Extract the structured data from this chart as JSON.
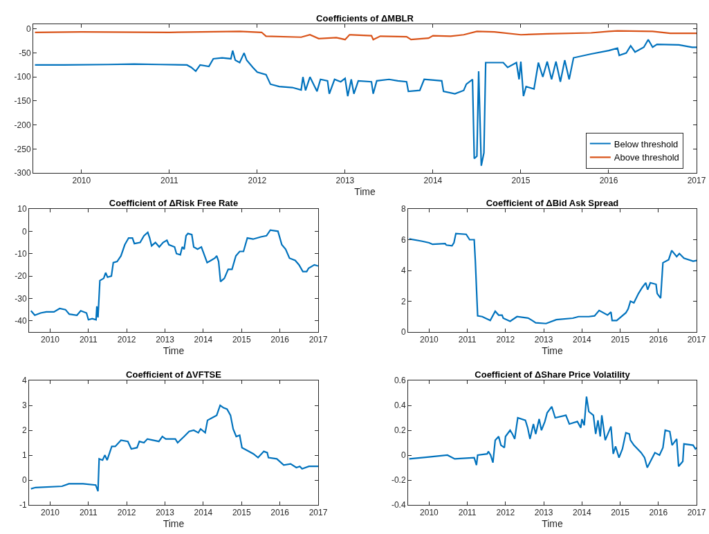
{
  "chart_data": [
    {
      "type": "line",
      "title": "Coefficients of ΔMBLR",
      "xlabel": "Time",
      "xlim": [
        2009.45,
        2017
      ],
      "xticks": [
        2010,
        2011,
        2012,
        2013,
        2014,
        2015,
        2016,
        2017
      ],
      "ylim": [
        -300,
        10
      ],
      "yticks": [
        -300,
        -250,
        -200,
        -150,
        -100,
        -50,
        0
      ],
      "legend": "bottom right",
      "series": [
        {
          "name": "Below threshold",
          "color": "#0072bd",
          "x": [
            2009.47,
            2009.8,
            2010.3,
            2010.6,
            2010.9,
            2011.2,
            2011.25,
            2011.3,
            2011.35,
            2011.45,
            2011.5,
            2011.6,
            2011.7,
            2011.72,
            2011.75,
            2011.8,
            2011.85,
            2011.88,
            2011.95,
            2012.0,
            2012.1,
            2012.15,
            2012.25,
            2012.4,
            2012.5,
            2012.52,
            2012.55,
            2012.6,
            2012.68,
            2012.72,
            2012.8,
            2012.82,
            2012.88,
            2012.95,
            2013.0,
            2013.03,
            2013.07,
            2013.1,
            2013.15,
            2013.3,
            2013.32,
            2013.36,
            2013.5,
            2013.6,
            2013.7,
            2013.72,
            2013.85,
            2013.9,
            2014.1,
            2014.12,
            2014.25,
            2014.35,
            2014.38,
            2014.45,
            2014.47,
            2014.5,
            2014.52,
            2014.55,
            2014.58,
            2014.6,
            2014.8,
            2014.85,
            2014.95,
            2014.98,
            2015.0,
            2015.03,
            2015.06,
            2015.15,
            2015.2,
            2015.25,
            2015.3,
            2015.35,
            2015.4,
            2015.45,
            2015.5,
            2015.55,
            2015.6,
            2015.8,
            2016.0,
            2016.1,
            2016.12,
            2016.2,
            2016.25,
            2016.3,
            2016.4,
            2016.45,
            2016.5,
            2016.55,
            2016.8,
            2016.95,
            2017.0
          ],
          "values": [
            -75,
            -75,
            -74,
            -73,
            -74,
            -75,
            -80,
            -88,
            -75,
            -78,
            -62,
            -60,
            -62,
            -45,
            -65,
            -70,
            -50,
            -65,
            -80,
            -90,
            -95,
            -115,
            -120,
            -122,
            -127,
            -100,
            -128,
            -100,
            -130,
            -105,
            -108,
            -135,
            -105,
            -110,
            -103,
            -140,
            -105,
            -135,
            -108,
            -110,
            -135,
            -108,
            -105,
            -108,
            -110,
            -130,
            -128,
            -105,
            -108,
            -130,
            -135,
            -128,
            -115,
            -105,
            -270,
            -265,
            -88,
            -285,
            -258,
            -70,
            -70,
            -80,
            -70,
            -105,
            -68,
            -140,
            -120,
            -125,
            -70,
            -100,
            -68,
            -105,
            -68,
            -110,
            -65,
            -105,
            -60,
            -52,
            -45,
            -40,
            -55,
            -50,
            -35,
            -48,
            -38,
            -22,
            -38,
            -32,
            -33,
            -38,
            -38
          ]
        },
        {
          "name": "Above threshold",
          "color": "#d95319",
          "x": [
            2009.47,
            2010,
            2011,
            2011.8,
            2012.05,
            2012.1,
            2012.5,
            2012.6,
            2012.7,
            2012.9,
            2013.0,
            2013.05,
            2013.3,
            2013.32,
            2013.4,
            2013.7,
            2013.75,
            2013.95,
            2014.0,
            2014.2,
            2014.35,
            2014.5,
            2014.7,
            2015.0,
            2015.3,
            2015.8,
            2016.0,
            2016.1,
            2016.5,
            2016.7,
            2017
          ],
          "values": [
            -7,
            -6,
            -7,
            -5,
            -7,
            -15,
            -17,
            -12,
            -20,
            -18,
            -22,
            -12,
            -14,
            -22,
            -15,
            -16,
            -22,
            -19,
            -14,
            -15,
            -12,
            -5,
            -6,
            -12,
            -10,
            -8,
            -5,
            -4,
            -5,
            -9,
            -9
          ]
        }
      ]
    },
    {
      "type": "line",
      "title": "Coefficient of ΔRisk Free Rate",
      "xlabel": "Time",
      "xlim": [
        2009.45,
        2017
      ],
      "xticks": [
        2010,
        2011,
        2012,
        2013,
        2014,
        2015,
        2016,
        2017
      ],
      "ylim": [
        -45,
        10
      ],
      "yticks": [
        -40,
        -30,
        -20,
        -10,
        0,
        10
      ],
      "series": [
        {
          "color": "#0072bd",
          "x": [
            2009.5,
            2009.6,
            2009.75,
            2009.9,
            2010.1,
            2010.25,
            2010.4,
            2010.5,
            2010.7,
            2010.8,
            2010.95,
            2011.0,
            2011.1,
            2011.2,
            2011.22,
            2011.25,
            2011.3,
            2011.4,
            2011.45,
            2011.5,
            2011.6,
            2011.65,
            2011.75,
            2011.85,
            2011.95,
            2012.05,
            2012.15,
            2012.2,
            2012.35,
            2012.45,
            2012.55,
            2012.6,
            2012.65,
            2012.75,
            2012.85,
            2012.95,
            2013.05,
            2013.1,
            2013.25,
            2013.3,
            2013.4,
            2013.45,
            2013.5,
            2013.55,
            2013.6,
            2013.7,
            2013.75,
            2013.85,
            2013.95,
            2014.1,
            2014.2,
            2014.3,
            2014.35,
            2014.4,
            2014.45,
            2014.55,
            2014.65,
            2014.75,
            2014.85,
            2014.95,
            2015.05,
            2015.15,
            2015.3,
            2015.5,
            2015.65,
            2015.75,
            2015.95,
            2016.05,
            2016.15,
            2016.25,
            2016.4,
            2016.5,
            2016.6,
            2016.7,
            2016.75,
            2016.9,
            2017.0
          ],
          "values": [
            -35.5,
            -37.5,
            -36.5,
            -36,
            -36,
            -34.5,
            -35,
            -37,
            -37.5,
            -35.5,
            -36.5,
            -39.5,
            -39,
            -39.5,
            -33.5,
            -38.5,
            -22,
            -21,
            -18.5,
            -20.5,
            -20,
            -14,
            -13.5,
            -11,
            -6,
            -3,
            -3,
            -5.5,
            -5,
            -2,
            -0.5,
            -3,
            -6.5,
            -5,
            -7,
            -5,
            -4,
            -6,
            -7,
            -10,
            -10.5,
            -7,
            -8,
            -2,
            -1,
            -1.5,
            -7,
            -8,
            -7,
            -14,
            -13,
            -12,
            -11,
            -13.5,
            -22.5,
            -21,
            -17,
            -17,
            -11,
            -9,
            -9,
            -3,
            -3.5,
            -2.5,
            -2,
            0.5,
            0,
            -6,
            -8,
            -12,
            -13,
            -15,
            -18,
            -18,
            -16.5,
            -15,
            -15.5
          ]
        }
      ]
    },
    {
      "type": "line",
      "title": "Coefficient of ΔBid Ask Spread",
      "xlabel": "Time",
      "xlim": [
        2009.45,
        2017
      ],
      "xticks": [
        2010,
        2011,
        2012,
        2013,
        2014,
        2015,
        2016,
        2017
      ],
      "ylim": [
        0,
        8
      ],
      "yticks": [
        0,
        2,
        4,
        6,
        8
      ],
      "series": [
        {
          "color": "#0072bd",
          "x": [
            2009.48,
            2009.82,
            2010.0,
            2010.09,
            2010.42,
            2010.45,
            2010.6,
            2010.65,
            2010.7,
            2010.97,
            2011.06,
            2011.18,
            2011.21,
            2011.27,
            2011.39,
            2011.6,
            2011.73,
            2011.82,
            2011.91,
            2011.94,
            2012.12,
            2012.24,
            2012.3,
            2012.6,
            2012.7,
            2012.79,
            2013.06,
            2013.33,
            2013.76,
            2013.91,
            2014.18,
            2014.33,
            2014.45,
            2014.67,
            2014.76,
            2014.79,
            2014.91,
            2015.15,
            2015.21,
            2015.27,
            2015.36,
            2015.48,
            2015.58,
            2015.67,
            2015.72,
            2015.79,
            2015.94,
            2015.97,
            2016.06,
            2016.12,
            2016.27,
            2016.35,
            2016.48,
            2016.55,
            2016.67,
            2016.91,
            2017.0
          ],
          "values": [
            6.05,
            5.9,
            5.8,
            5.7,
            5.75,
            5.65,
            5.6,
            5.8,
            6.4,
            6.35,
            6.0,
            6.0,
            4.6,
            1.05,
            1.0,
            0.75,
            1.35,
            1.1,
            1.1,
            0.9,
            0.7,
            0.9,
            1.0,
            0.9,
            0.75,
            0.6,
            0.55,
            0.8,
            0.9,
            1.0,
            1.0,
            1.05,
            1.4,
            1.1,
            1.3,
            0.75,
            0.75,
            1.25,
            1.5,
            2.0,
            1.9,
            2.5,
            2.9,
            3.2,
            2.75,
            3.2,
            3.1,
            2.5,
            2.2,
            4.5,
            4.7,
            5.3,
            4.9,
            5.1,
            4.8,
            4.6,
            4.65
          ]
        }
      ]
    },
    {
      "type": "line",
      "title": "Coefficient of ΔVFTSE",
      "xlabel": "Time",
      "xlim": [
        2009.45,
        2017
      ],
      "xticks": [
        2010,
        2011,
        2012,
        2013,
        2014,
        2015,
        2016,
        2017
      ],
      "ylim": [
        -1,
        4
      ],
      "yticks": [
        -1,
        0,
        1,
        2,
        3,
        4
      ],
      "series": [
        {
          "color": "#0072bd",
          "x": [
            2009.5,
            2009.62,
            2010.31,
            2010.49,
            2010.86,
            2011.19,
            2011.25,
            2011.28,
            2011.37,
            2011.43,
            2011.49,
            2011.61,
            2011.7,
            2011.85,
            2012.03,
            2012.12,
            2012.27,
            2012.33,
            2012.45,
            2012.54,
            2012.84,
            2012.93,
            2013.02,
            2013.27,
            2013.33,
            2013.5,
            2013.63,
            2013.75,
            2013.87,
            2013.93,
            2014.05,
            2014.11,
            2014.23,
            2014.35,
            2014.44,
            2014.53,
            2014.62,
            2014.71,
            2014.78,
            2014.86,
            2014.95,
            2015.01,
            2015.13,
            2015.31,
            2015.43,
            2015.58,
            2015.67,
            2015.7,
            2015.92,
            2016.1,
            2016.28,
            2016.43,
            2016.52,
            2016.58,
            2016.76,
            2016.94,
            2017.0
          ],
          "values": [
            -0.35,
            -0.3,
            -0.25,
            -0.15,
            -0.15,
            -0.2,
            -0.45,
            0.85,
            0.8,
            1.0,
            0.8,
            1.35,
            1.35,
            1.6,
            1.55,
            1.25,
            1.3,
            1.55,
            1.5,
            1.65,
            1.55,
            1.75,
            1.65,
            1.65,
            1.5,
            1.75,
            1.95,
            2.0,
            1.9,
            2.05,
            1.9,
            2.4,
            2.5,
            2.6,
            3.0,
            2.9,
            2.85,
            2.6,
            2.05,
            1.75,
            1.8,
            1.3,
            1.2,
            1.05,
            0.9,
            1.15,
            1.1,
            0.9,
            0.85,
            0.6,
            0.65,
            0.5,
            0.55,
            0.45,
            0.55,
            0.55,
            0.55
          ]
        }
      ]
    },
    {
      "type": "line",
      "title": "Coefficient of ΔShare Price Volatility",
      "xlabel": "Time",
      "xlim": [
        2009.45,
        2017
      ],
      "xticks": [
        2010,
        2011,
        2012,
        2013,
        2014,
        2015,
        2016,
        2017
      ],
      "ylim": [
        -0.4,
        0.6
      ],
      "yticks": [
        -0.4,
        -0.2,
        0,
        0.2,
        0.4,
        0.6
      ],
      "series": [
        {
          "color": "#0072bd",
          "x": [
            2009.48,
            2010.0,
            2010.48,
            2010.67,
            2011.18,
            2011.24,
            2011.27,
            2011.52,
            2011.55,
            2011.61,
            2011.67,
            2011.73,
            2011.82,
            2011.88,
            2011.97,
            2012.0,
            2012.12,
            2012.18,
            2012.24,
            2012.32,
            2012.52,
            2012.58,
            2012.64,
            2012.73,
            2012.79,
            2012.88,
            2012.94,
            2013.03,
            2013.09,
            2013.21,
            2013.3,
            2013.58,
            2013.67,
            2013.88,
            2013.97,
            2014.0,
            2014.06,
            2014.12,
            2014.18,
            2014.3,
            2014.36,
            2014.42,
            2014.48,
            2014.52,
            2014.61,
            2014.76,
            2014.82,
            2014.88,
            2014.97,
            2015.06,
            2015.15,
            2015.24,
            2015.27,
            2015.36,
            2015.55,
            2015.64,
            2015.71,
            2015.91,
            2016.03,
            2016.12,
            2016.18,
            2016.3,
            2016.36,
            2016.48,
            2016.53,
            2016.64,
            2016.67,
            2016.91,
            2016.97,
            2017.0
          ],
          "values": [
            -0.03,
            -0.015,
            0,
            -0.03,
            -0.02,
            -0.08,
            0,
            0.01,
            0.03,
            0,
            -0.06,
            0.12,
            0.15,
            0.08,
            0.06,
            0.15,
            0.2,
            0.17,
            0.13,
            0.3,
            0.28,
            0.22,
            0.13,
            0.25,
            0.17,
            0.29,
            0.2,
            0.27,
            0.34,
            0.39,
            0.3,
            0.32,
            0.25,
            0.27,
            0.22,
            0.29,
            0.24,
            0.47,
            0.35,
            0.32,
            0.17,
            0.28,
            0.15,
            0.32,
            0.12,
            0.23,
            0.01,
            0.07,
            -0.02,
            0.05,
            0.18,
            0.17,
            0.12,
            0.08,
            0.02,
            -0.02,
            -0.1,
            0.02,
            0,
            0.06,
            0.2,
            0.19,
            0.08,
            0.13,
            -0.09,
            -0.05,
            0.09,
            0.08,
            0.05,
            0.06
          ]
        }
      ]
    }
  ]
}
